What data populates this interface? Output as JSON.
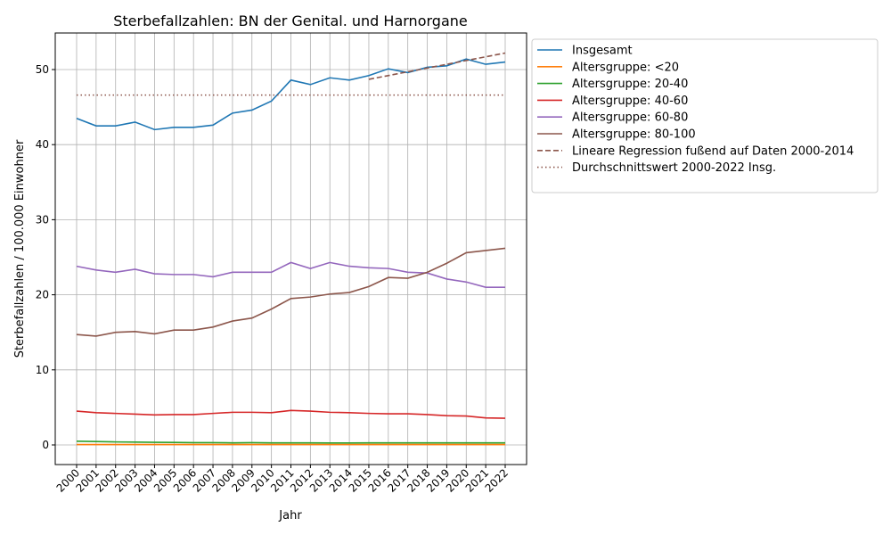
{
  "chart_data": {
    "type": "line",
    "title": "Sterbefallzahlen: BN der Genital. und Harnorgane",
    "xlabel": "Jahr",
    "ylabel": "Sterbefallzahlen / 100.000 Einwohner",
    "ylim": [
      -2.6,
      54.8
    ],
    "yticks": [
      0,
      10,
      20,
      30,
      40,
      50
    ],
    "grid": true,
    "legend_placement": "outside-top-right",
    "x": [
      2000,
      2001,
      2002,
      2003,
      2004,
      2005,
      2006,
      2007,
      2008,
      2009,
      2010,
      2011,
      2012,
      2013,
      2014,
      2015,
      2016,
      2017,
      2018,
      2019,
      2020,
      2021,
      2022
    ],
    "series": [
      {
        "name": "Insgesamt",
        "color": "#1f77b4",
        "style": "solid",
        "values": [
          43.5,
          42.5,
          42.5,
          43.0,
          42.0,
          42.3,
          42.3,
          42.6,
          44.2,
          44.6,
          45.8,
          48.6,
          48.0,
          48.9,
          48.6,
          49.2,
          50.1,
          49.6,
          50.3,
          50.5,
          51.4,
          50.7,
          51.0
        ]
      },
      {
        "name": "Altersgruppe: <20",
        "color": "#ff7f0e",
        "style": "solid",
        "values": [
          0.05,
          0.05,
          0.05,
          0.05,
          0.05,
          0.05,
          0.05,
          0.05,
          0.05,
          0.05,
          0.05,
          0.05,
          0.05,
          0.05,
          0.05,
          0.05,
          0.05,
          0.05,
          0.05,
          0.05,
          0.05,
          0.05,
          0.05
        ]
      },
      {
        "name": "Altersgruppe: 20-40",
        "color": "#2ca02c",
        "style": "solid",
        "values": [
          0.5,
          0.45,
          0.4,
          0.38,
          0.35,
          0.33,
          0.3,
          0.3,
          0.28,
          0.3,
          0.28,
          0.27,
          0.28,
          0.26,
          0.26,
          0.27,
          0.27,
          0.27,
          0.28,
          0.28,
          0.28,
          0.27,
          0.28
        ]
      },
      {
        "name": "Altersgruppe: 40-60",
        "color": "#d62728",
        "style": "solid",
        "values": [
          4.5,
          4.3,
          4.2,
          4.1,
          4.0,
          4.05,
          4.05,
          4.2,
          4.35,
          4.35,
          4.3,
          4.6,
          4.5,
          4.35,
          4.3,
          4.2,
          4.15,
          4.15,
          4.05,
          3.9,
          3.85,
          3.6,
          3.55
        ]
      },
      {
        "name": "Altersgruppe: 60-80",
        "color": "#9467bd",
        "style": "solid",
        "values": [
          23.8,
          23.3,
          23.0,
          23.4,
          22.8,
          22.7,
          22.7,
          22.4,
          23.0,
          23.0,
          23.0,
          24.3,
          23.5,
          24.3,
          23.8,
          23.6,
          23.5,
          23.0,
          22.9,
          22.1,
          21.7,
          21.0,
          21.0
        ]
      },
      {
        "name": "Altersgruppe: 80-100",
        "color": "#8c564b",
        "style": "solid",
        "values": [
          14.7,
          14.5,
          15.0,
          15.1,
          14.8,
          15.3,
          15.3,
          15.7,
          16.5,
          16.9,
          18.1,
          19.5,
          19.7,
          20.1,
          20.3,
          21.1,
          22.3,
          22.2,
          23.0,
          24.2,
          25.6,
          25.9,
          26.2
        ]
      },
      {
        "name": "Lineare Regression fußend auf Daten 2000-2014",
        "color": "#8c564b",
        "style": "dashed",
        "x": [
          2015,
          2022
        ],
        "values": [
          48.7,
          52.2
        ]
      },
      {
        "name": "Durchschnittswert 2000-2022 Insg.",
        "color": "#8c564b",
        "style": "dotted",
        "x": [
          2000,
          2022
        ],
        "values": [
          46.6,
          46.6
        ]
      }
    ]
  }
}
